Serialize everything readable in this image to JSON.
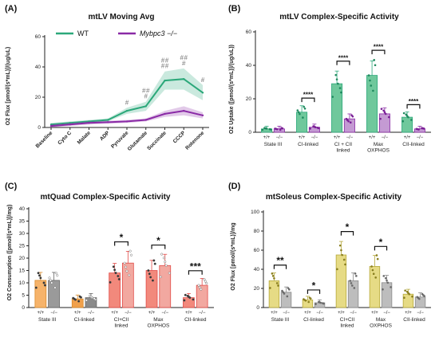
{
  "colors": {
    "wt": "#2ca87a",
    "ko": "#8a2aa6",
    "axis": "#222222",
    "red": "#e24a47",
    "orange": "#f0a04b",
    "olive": "#b5a83a",
    "gray": "#8a8a8a"
  },
  "chart_data": [
    {
      "panel": "(A)",
      "type": "line",
      "title": "mtLV Moving Avg",
      "ylabel": "O2 Flux [pmol/(s*mL)]/(ug/uL)",
      "ylim": [
        0,
        60
      ],
      "yticks": [
        "0",
        "20",
        "40",
        "60"
      ],
      "categories": [
        "Baseline",
        "Cyto C",
        "Malate",
        "ADP",
        "Pyruvate",
        "Glutamate",
        "Succinate",
        "CCCP",
        "Rotenone"
      ],
      "legend": [
        "WT",
        "Mybpc3 −/−"
      ],
      "series": [
        {
          "name": "WT",
          "values": [
            2,
            3,
            4,
            5,
            11,
            14,
            31,
            32,
            23
          ],
          "err": [
            1,
            1,
            1,
            1,
            2,
            3,
            6,
            7,
            5
          ]
        },
        {
          "name": "Mybpc3 −/−",
          "values": [
            1,
            2,
            3,
            3.5,
            4,
            5,
            9,
            11,
            8
          ],
          "err": [
            1,
            1,
            1,
            1,
            1,
            1,
            2,
            3,
            2
          ]
        }
      ],
      "hash_labels": [
        {
          "category": "Pyruvate",
          "text": "#"
        },
        {
          "category": "Glutamate",
          "text": "# # #"
        },
        {
          "category": "Succinate",
          "text": "# # # #"
        },
        {
          "category": "CCCP",
          "text": "# # #"
        },
        {
          "category": "Rotenone",
          "text": "#"
        }
      ]
    },
    {
      "panel": "(B)",
      "type": "bar",
      "title": "mtLV Complex-Specific Activity",
      "ylabel": "O2 Uptake ([pmol/(s*mL)]/(ug/uL))",
      "ylim": [
        0,
        60
      ],
      "yticks": [
        "0",
        "20",
        "40",
        "60"
      ],
      "categories": [
        "State III",
        "CI-linked",
        "CI + CII linked",
        "Max OXPHOS",
        "CII-linked"
      ],
      "genotypes": [
        "+/+",
        "−/−"
      ],
      "series": [
        {
          "name": "+/+",
          "values": [
            2,
            12,
            29,
            34,
            9
          ]
        },
        {
          "name": "−/−",
          "values": [
            2,
            3,
            8,
            11,
            2
          ]
        }
      ],
      "significance": [
        "",
        "****",
        "****",
        "****",
        "****"
      ]
    },
    {
      "panel": "(C)",
      "type": "bar",
      "title": "mtQuad Complex-Specific Activity",
      "ylabel": "O2 Consumption ([pmol/(s*mL)]/mg)",
      "ylim": [
        0,
        40
      ],
      "yticks": [
        "0",
        "5",
        "10",
        "15",
        "20",
        "25",
        "30",
        "35",
        "40"
      ],
      "categories": [
        "State III",
        "CI-linked",
        "CI+CII linked",
        "Max OXPHOS",
        "CII-linked"
      ],
      "genotypes": [
        "+/+",
        "−/−"
      ],
      "series": [
        {
          "name": "+/+",
          "values": [
            11,
            3.5,
            14,
            15,
            4
          ]
        },
        {
          "name": "−/−",
          "values": [
            11,
            4,
            18,
            17,
            9
          ]
        }
      ],
      "significance": [
        "",
        "",
        "*",
        "*",
        "***"
      ]
    },
    {
      "panel": "(D)",
      "type": "bar",
      "title": "mtSoleus Complex-Specific Activity",
      "ylabel": "O2 Flux [pmol/(s*mL)]/mg",
      "ylim": [
        0,
        100
      ],
      "yticks": [
        "0",
        "20",
        "40",
        "60",
        "80",
        "100"
      ],
      "categories": [
        "State III",
        "CI-linked",
        "CI+CII linked",
        "Max OXPHOS",
        "CII-linked"
      ],
      "genotypes": [
        "+/+",
        "−/−"
      ],
      "series": [
        {
          "name": "+/+",
          "values": [
            28,
            8,
            55,
            43,
            14
          ]
        },
        {
          "name": "−/−",
          "values": [
            16,
            5,
            28,
            26,
            11
          ]
        }
      ],
      "significance": [
        "**",
        "*",
        "*",
        "*",
        ""
      ]
    }
  ]
}
